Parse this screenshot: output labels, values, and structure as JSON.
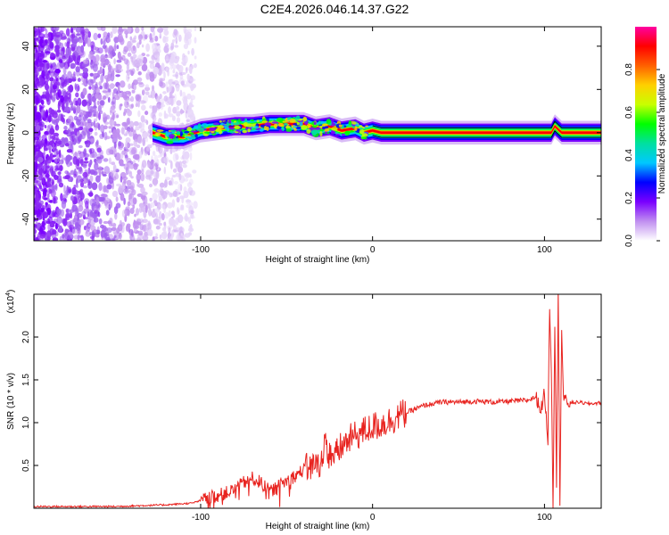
{
  "figure": {
    "title": "C2E4.2026.046.14.37.G22"
  },
  "chart_data": [
    {
      "type": "heatmap",
      "name": "spectrogram",
      "xlabel": "Height of straight line (km)",
      "ylabel": "Frequency (Hz)",
      "xlim": [
        -197,
        133
      ],
      "ylim": [
        -50,
        49
      ],
      "xticks": [
        -100,
        0,
        100
      ],
      "yticks": [
        -40,
        -20,
        0,
        20,
        40
      ],
      "colorbar": {
        "label": "Normalized spectral amplitude",
        "range": [
          0,
          1
        ],
        "ticks": [
          0.0,
          0.2,
          0.4,
          0.6,
          0.8
        ],
        "colors": [
          "#ffffff",
          "#c08ff0",
          "#7a00ff",
          "#0000ff",
          "#00c8ff",
          "#00e0a0",
          "#00ff00",
          "#c8ff00",
          "#ffd000",
          "#ff6000",
          "#ff0000",
          "#ff00a0"
        ]
      },
      "noise_region_x": [
        -197,
        -103
      ],
      "band_center_track": {
        "x": [
          -128,
          -120,
          -110,
          -100,
          -90,
          -80,
          -70,
          -60,
          -50,
          -40,
          -33,
          -25,
          -18,
          -10,
          -5,
          0,
          5,
          10,
          30,
          60,
          90,
          100,
          104,
          106,
          110,
          133
        ],
        "y": [
          0,
          -2,
          -2,
          1,
          2,
          3,
          3,
          4,
          4,
          4,
          2,
          3,
          1,
          2,
          0,
          1,
          0,
          0,
          0,
          0,
          0,
          0,
          0,
          3,
          0,
          0
        ]
      },
      "band_halfwidth_hz": [
        5,
        3
      ]
    },
    {
      "type": "line",
      "name": "snr",
      "xlabel": "Height of straight line (km)",
      "ylabel": "SNR (10 * v/v)",
      "y_multiplier_label": "(x10",
      "y_multiplier_exp": "4",
      "xlim": [
        -197,
        133
      ],
      "ylim": [
        0,
        2.5
      ],
      "xticks": [
        -100,
        0,
        100
      ],
      "yticks": [
        0.5,
        1.0,
        1.5,
        2.0
      ],
      "ytick_labels": [
        "0.5",
        "1.0",
        "1.5",
        "2.0"
      ],
      "line_color": "#e8231f",
      "series": [
        {
          "x": [
            -197,
            -150,
            -120,
            -105,
            -95,
            -85,
            -80,
            -75,
            -70,
            -65,
            -60,
            -55,
            -50,
            -45,
            -40,
            -35,
            -30,
            -28,
            -25,
            -22,
            -20,
            -15,
            -10,
            -5,
            0,
            5,
            10,
            15,
            20,
            25,
            30,
            35,
            40,
            50,
            60,
            70,
            80,
            90,
            95,
            98,
            100,
            102,
            103,
            104,
            105,
            106,
            107,
            108,
            109,
            110,
            111,
            112,
            115,
            120,
            125,
            133
          ],
          "y": [
            0.02,
            0.02,
            0.04,
            0.06,
            0.12,
            0.18,
            0.22,
            0.3,
            0.35,
            0.3,
            0.2,
            0.25,
            0.32,
            0.38,
            0.45,
            0.5,
            0.55,
            0.75,
            0.62,
            0.58,
            0.68,
            0.78,
            0.85,
            0.9,
            0.95,
            0.98,
            1.02,
            1.08,
            1.12,
            1.16,
            1.2,
            1.22,
            1.24,
            1.24,
            1.25,
            1.24,
            1.25,
            1.26,
            1.3,
            1.15,
            1.35,
            0.8,
            2.4,
            1.6,
            0.05,
            2.2,
            0.3,
            2.5,
            0.1,
            2.1,
            1.3,
            1.25,
            1.23,
            1.24,
            1.22,
            1.23
          ]
        }
      ]
    }
  ]
}
